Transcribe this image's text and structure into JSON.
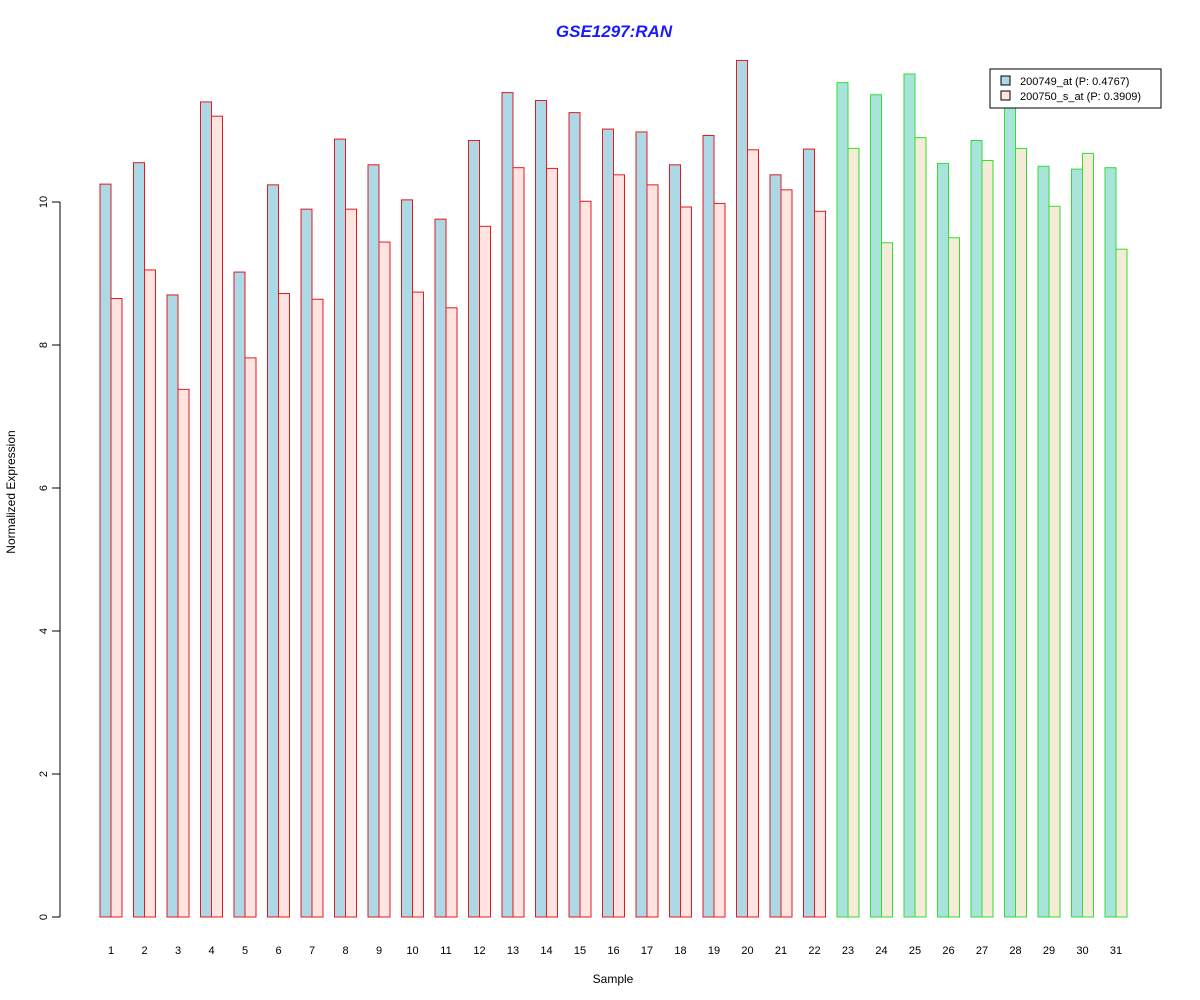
{
  "chart_data": {
    "type": "bar",
    "title": "GSE1297:RAN",
    "xlabel": "Sample",
    "ylabel": "Normalized Expression",
    "ylim": [
      0,
      12
    ],
    "yticks": [
      0,
      2,
      4,
      6,
      8,
      10
    ],
    "grid": false,
    "legend_position": "top-right",
    "categories": [
      "1",
      "2",
      "3",
      "4",
      "5",
      "6",
      "7",
      "8",
      "9",
      "10",
      "11",
      "12",
      "13",
      "14",
      "15",
      "16",
      "17",
      "18",
      "19",
      "20",
      "21",
      "22",
      "23",
      "24",
      "25",
      "26",
      "27",
      "28",
      "29",
      "30",
      "31"
    ],
    "group_a_count": 22,
    "colors": {
      "title": "#1a1aff",
      "group_a_border": "#e41a1c",
      "group_b_border": "#33dd33",
      "series1_fill_group_a": "#add8e6",
      "series2_fill_group_a": "#ffe4e1",
      "series1_fill_group_b": "#a8e4dc",
      "series2_fill_group_b": "#f5ecd7"
    },
    "series": [
      {
        "name": "200749_at (P: 0.4767)",
        "values": [
          10.25,
          10.55,
          8.7,
          11.4,
          9.02,
          10.24,
          9.9,
          10.88,
          10.52,
          10.03,
          9.76,
          10.86,
          11.53,
          11.42,
          11.25,
          11.02,
          10.98,
          10.52,
          10.93,
          11.98,
          10.38,
          10.74,
          11.67,
          11.5,
          11.79,
          10.54,
          10.86,
          11.45,
          10.5,
          10.46,
          10.48
        ]
      },
      {
        "name": "200750_s_at (P: 0.3909)",
        "values": [
          8.65,
          9.05,
          7.38,
          11.2,
          7.82,
          8.72,
          8.64,
          9.9,
          9.44,
          8.74,
          8.52,
          9.66,
          10.48,
          10.47,
          10.01,
          10.38,
          10.24,
          9.93,
          9.98,
          10.73,
          10.17,
          9.87,
          10.75,
          9.43,
          10.9,
          9.5,
          10.58,
          10.75,
          9.94,
          10.68,
          9.34
        ]
      }
    ]
  }
}
